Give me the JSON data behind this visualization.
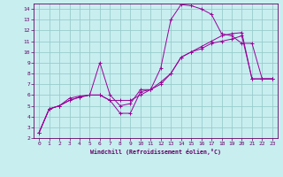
{
  "xlabel": "Windchill (Refroidissement éolien,°C)",
  "background_color": "#c8eef0",
  "grid_color": "#99cccc",
  "line_color": "#990099",
  "spine_color": "#660066",
  "xlim": [
    -0.5,
    23.5
  ],
  "ylim": [
    2,
    14.5
  ],
  "xticks": [
    0,
    1,
    2,
    3,
    4,
    5,
    6,
    7,
    8,
    9,
    10,
    11,
    12,
    13,
    14,
    15,
    16,
    17,
    18,
    19,
    20,
    21,
    22,
    23
  ],
  "yticks": [
    2,
    3,
    4,
    5,
    6,
    7,
    8,
    9,
    10,
    11,
    12,
    13,
    14
  ],
  "line1_x": [
    0,
    1,
    2,
    3,
    4,
    5,
    6,
    7,
    8,
    9,
    10,
    11,
    12,
    13,
    14,
    15,
    16,
    17,
    18,
    19,
    20,
    21,
    22,
    23
  ],
  "line1_y": [
    2.5,
    4.7,
    5.0,
    5.7,
    5.9,
    6.0,
    9.0,
    6.0,
    5.0,
    5.2,
    6.5,
    6.5,
    8.5,
    13.0,
    14.4,
    14.3,
    14.0,
    13.5,
    11.7,
    11.5,
    10.8,
    10.8,
    7.5,
    7.5
  ],
  "line2_x": [
    0,
    1,
    2,
    3,
    4,
    5,
    6,
    7,
    8,
    9,
    10,
    11,
    12,
    13,
    14,
    15,
    16,
    17,
    18,
    19,
    20,
    21,
    22,
    23
  ],
  "line2_y": [
    2.5,
    4.7,
    5.0,
    5.5,
    5.8,
    6.0,
    6.0,
    5.5,
    4.3,
    4.3,
    6.3,
    6.5,
    7.2,
    8.0,
    9.5,
    10.0,
    10.5,
    11.0,
    11.5,
    11.7,
    11.8,
    7.5,
    7.5,
    7.5
  ],
  "line3_x": [
    0,
    1,
    2,
    3,
    4,
    5,
    6,
    7,
    8,
    9,
    10,
    11,
    12,
    13,
    14,
    15,
    16,
    17,
    18,
    19,
    20,
    21,
    22,
    23
  ],
  "line3_y": [
    2.5,
    4.7,
    5.0,
    5.5,
    5.8,
    6.0,
    6.0,
    5.5,
    5.5,
    5.5,
    6.0,
    6.5,
    7.0,
    8.0,
    9.5,
    10.0,
    10.3,
    10.8,
    11.0,
    11.2,
    11.5,
    7.5,
    7.5,
    7.5
  ]
}
